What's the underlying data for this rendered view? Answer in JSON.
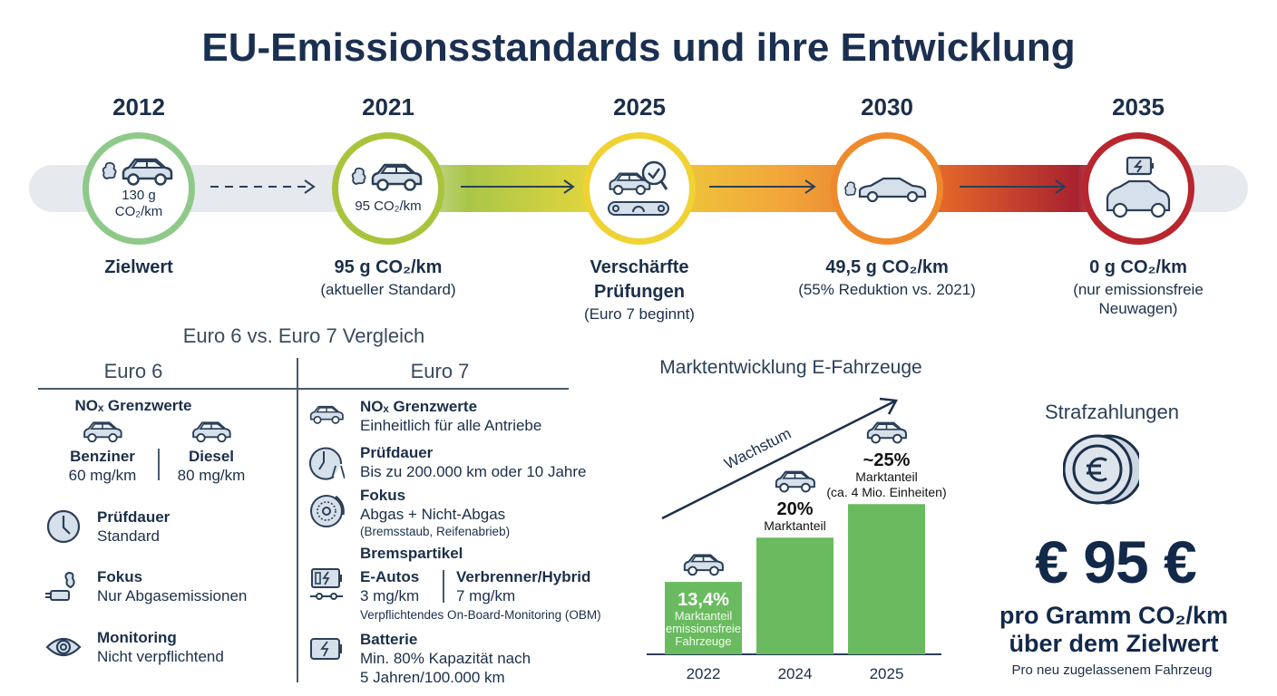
{
  "title": "EU-Emissionsstandards und ihre Entwicklung",
  "timeline": [
    {
      "year": "2012",
      "circle_text": "130 g CO₂/km",
      "label": "Zielwert",
      "sub": "",
      "color": "#8fc98a",
      "icon": "car-exhaust-icon"
    },
    {
      "year": "2021",
      "circle_text": "95 CO₂/km",
      "label": "95 g CO₂/km",
      "sub": "(aktueller Standard)",
      "color": "#a8c43c",
      "icon": "car-exhaust-icon"
    },
    {
      "year": "2025",
      "circle_text": "",
      "label": "Verschärfte Prüfungen",
      "sub": "(Euro 7 beginnt)",
      "color": "#f0d234",
      "icon": "car-inspection-icon"
    },
    {
      "year": "2030",
      "circle_text": "",
      "label": "49,5 g CO₂/km",
      "sub": "(55% Reduktion vs. 2021)",
      "color": "#ef8a2c",
      "icon": "sedan-exhaust-icon"
    },
    {
      "year": "2035",
      "circle_text": "",
      "label": "0 g CO₂/km",
      "sub": "(nur emissionsfreie Neuwagen)",
      "color": "#b8262e",
      "icon": "electric-car-battery-icon"
    }
  ],
  "comparison": {
    "title": "Euro 6 vs. Euro 7 Vergleich",
    "euro6": {
      "header": "Euro 6",
      "nox_title": "NOₓ Grenzwerte",
      "benziner": {
        "label": "Benziner",
        "value": "60 mg/km"
      },
      "diesel": {
        "label": "Diesel",
        "value": "80 mg/km"
      },
      "items": [
        {
          "title": "Prüfdauer",
          "text": "Standard",
          "icon": "clock-icon"
        },
        {
          "title": "Fokus",
          "text": "Nur Abgasemissionen",
          "icon": "exhaust-pipe-icon"
        },
        {
          "title": "Monitoring",
          "text": "Nicht verpflichtend",
          "icon": "eye-icon"
        }
      ]
    },
    "euro7": {
      "header": "Euro 7",
      "nox": {
        "title": "NOₓ Grenzwerte",
        "text": "Einheitlich für alle Antriebe"
      },
      "pruefdauer": {
        "title": "Prüfdauer",
        "text": "Bis zu 200.000 km oder 10 Jahre"
      },
      "fokus": {
        "title": "Fokus",
        "text": "Abgas + Nicht-Abgas",
        "small": "(Bremsstaub, Reifenabrieb)"
      },
      "brems": {
        "title": "Bremspartikel",
        "eautos": "E-Autos",
        "eautos_value": "3 mg/km",
        "verbrenner": "Verbrenner/Hybrid",
        "verbrenner_value": "7 mg/km",
        "obm": "Verpflichtendes On-Board-Monitoring (OBM)"
      },
      "batterie": {
        "title": "Batterie",
        "line1": "Min. 80% Kapazität nach",
        "line2": "5 Jahren/100.000 km"
      }
    }
  },
  "chart_data": {
    "type": "bar",
    "title": "Marktentwicklung E-Fahrzeuge",
    "categories": [
      "2022",
      "2024",
      "2025"
    ],
    "values": [
      13.4,
      20,
      25
    ],
    "unit": "%",
    "value_labels": [
      "13,4%",
      "20%",
      "~25%"
    ],
    "bar_notes": [
      [
        "Marktanteil",
        "emissionsfreie",
        "Fahrzeuge"
      ],
      [
        "Marktanteil"
      ],
      [
        "Marktanteil",
        "(ca. 4 Mio. Einheiten)"
      ]
    ],
    "trend_label": "Wachstum",
    "bar_color": "#6abb5f",
    "grid": false
  },
  "penalty": {
    "title": "Strafzahlungen",
    "amount": "€ 95 €",
    "line1": "pro Gramm CO₂/km",
    "line2": "über dem Zielwert",
    "note": "Pro neu zugelassenem Fahrzeug",
    "icon": "euro-coins-icon"
  },
  "colors": {
    "navy": "#1b2f4a",
    "bar": "#6abb5f"
  }
}
